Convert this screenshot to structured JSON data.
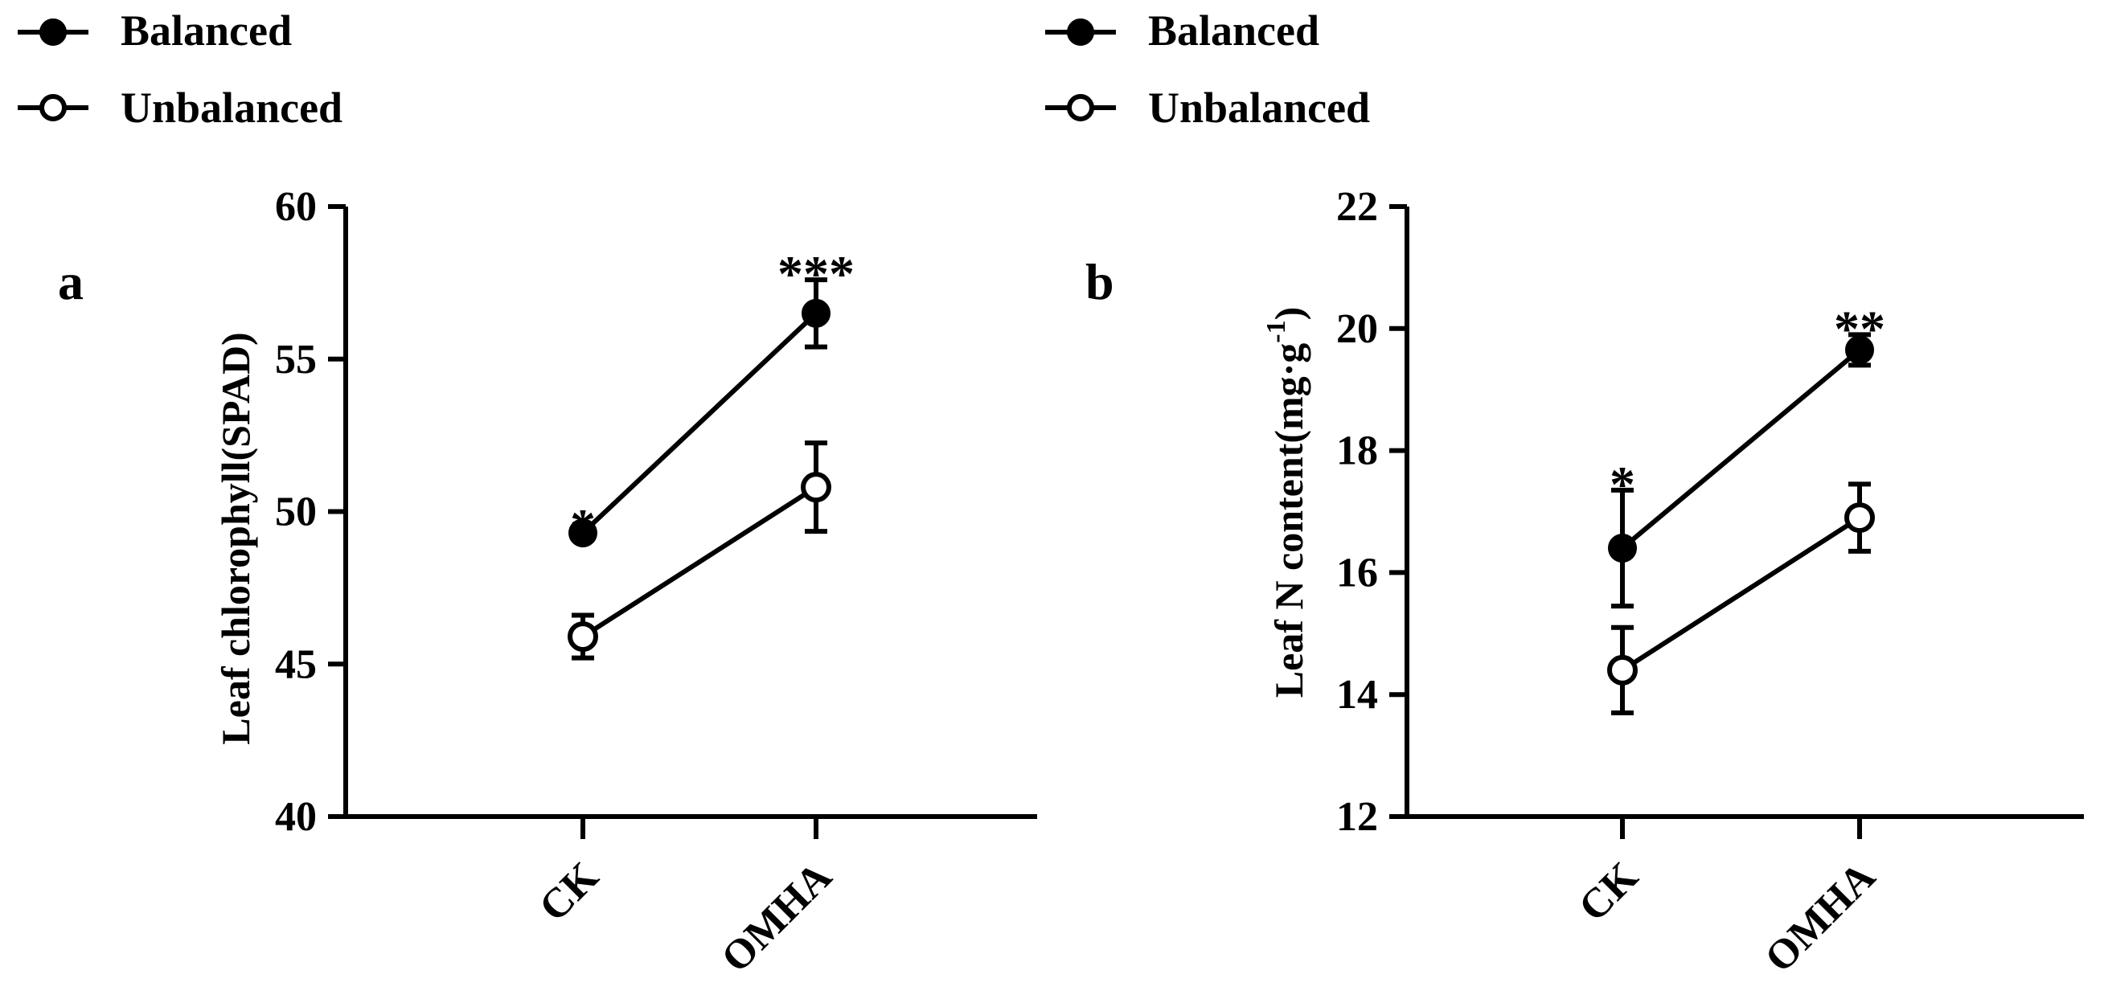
{
  "chart_data": [
    {
      "panel_label": "a",
      "type": "line",
      "title": "",
      "categories": [
        "CK",
        "OMHA"
      ],
      "xlabel": "",
      "ylabel": "Leaf chlorophyll(SPAD)",
      "ylabel_super": "",
      "ylabel_tail": "",
      "ylim": [
        40,
        60
      ],
      "yticks": [
        40,
        45,
        50,
        55,
        60
      ],
      "yticks_text": [
        "40",
        "45",
        "50",
        "55",
        "60"
      ],
      "legend": {
        "placement": "top-left",
        "entries": [
          "Balanced",
          "Unbalanced"
        ]
      },
      "series": [
        {
          "name": "Balanced",
          "marker": "filled-circle",
          "values": [
            49.3,
            56.5
          ],
          "errors": [
            0.0,
            1.1
          ]
        },
        {
          "name": "Unbalanced",
          "marker": "open-circle",
          "values": [
            45.9,
            50.8
          ],
          "errors": [
            0.7,
            1.45
          ]
        }
      ],
      "annotations": [
        "*",
        "***"
      ]
    },
    {
      "panel_label": "b",
      "type": "line",
      "title": "",
      "categories": [
        "CK",
        "OMHA"
      ],
      "xlabel": "",
      "ylabel": "Leaf  N content(mg·g",
      "ylabel_super": "-1",
      "ylabel_tail": ")",
      "ylim": [
        12,
        22
      ],
      "yticks": [
        12,
        14,
        16,
        18,
        20,
        22
      ],
      "yticks_text": [
        "12",
        "14",
        "16",
        "18",
        "20",
        "22"
      ],
      "legend": {
        "placement": "top-left",
        "entries": [
          "Balanced",
          "Unbalanced"
        ]
      },
      "series": [
        {
          "name": "Balanced",
          "marker": "filled-circle",
          "values": [
            16.4,
            19.65
          ],
          "errors": [
            0.95,
            0.25
          ]
        },
        {
          "name": "Unbalanced",
          "marker": "open-circle",
          "values": [
            14.4,
            16.9
          ],
          "errors": [
            0.7,
            0.55
          ]
        }
      ],
      "annotations": [
        "*",
        "**"
      ]
    }
  ]
}
